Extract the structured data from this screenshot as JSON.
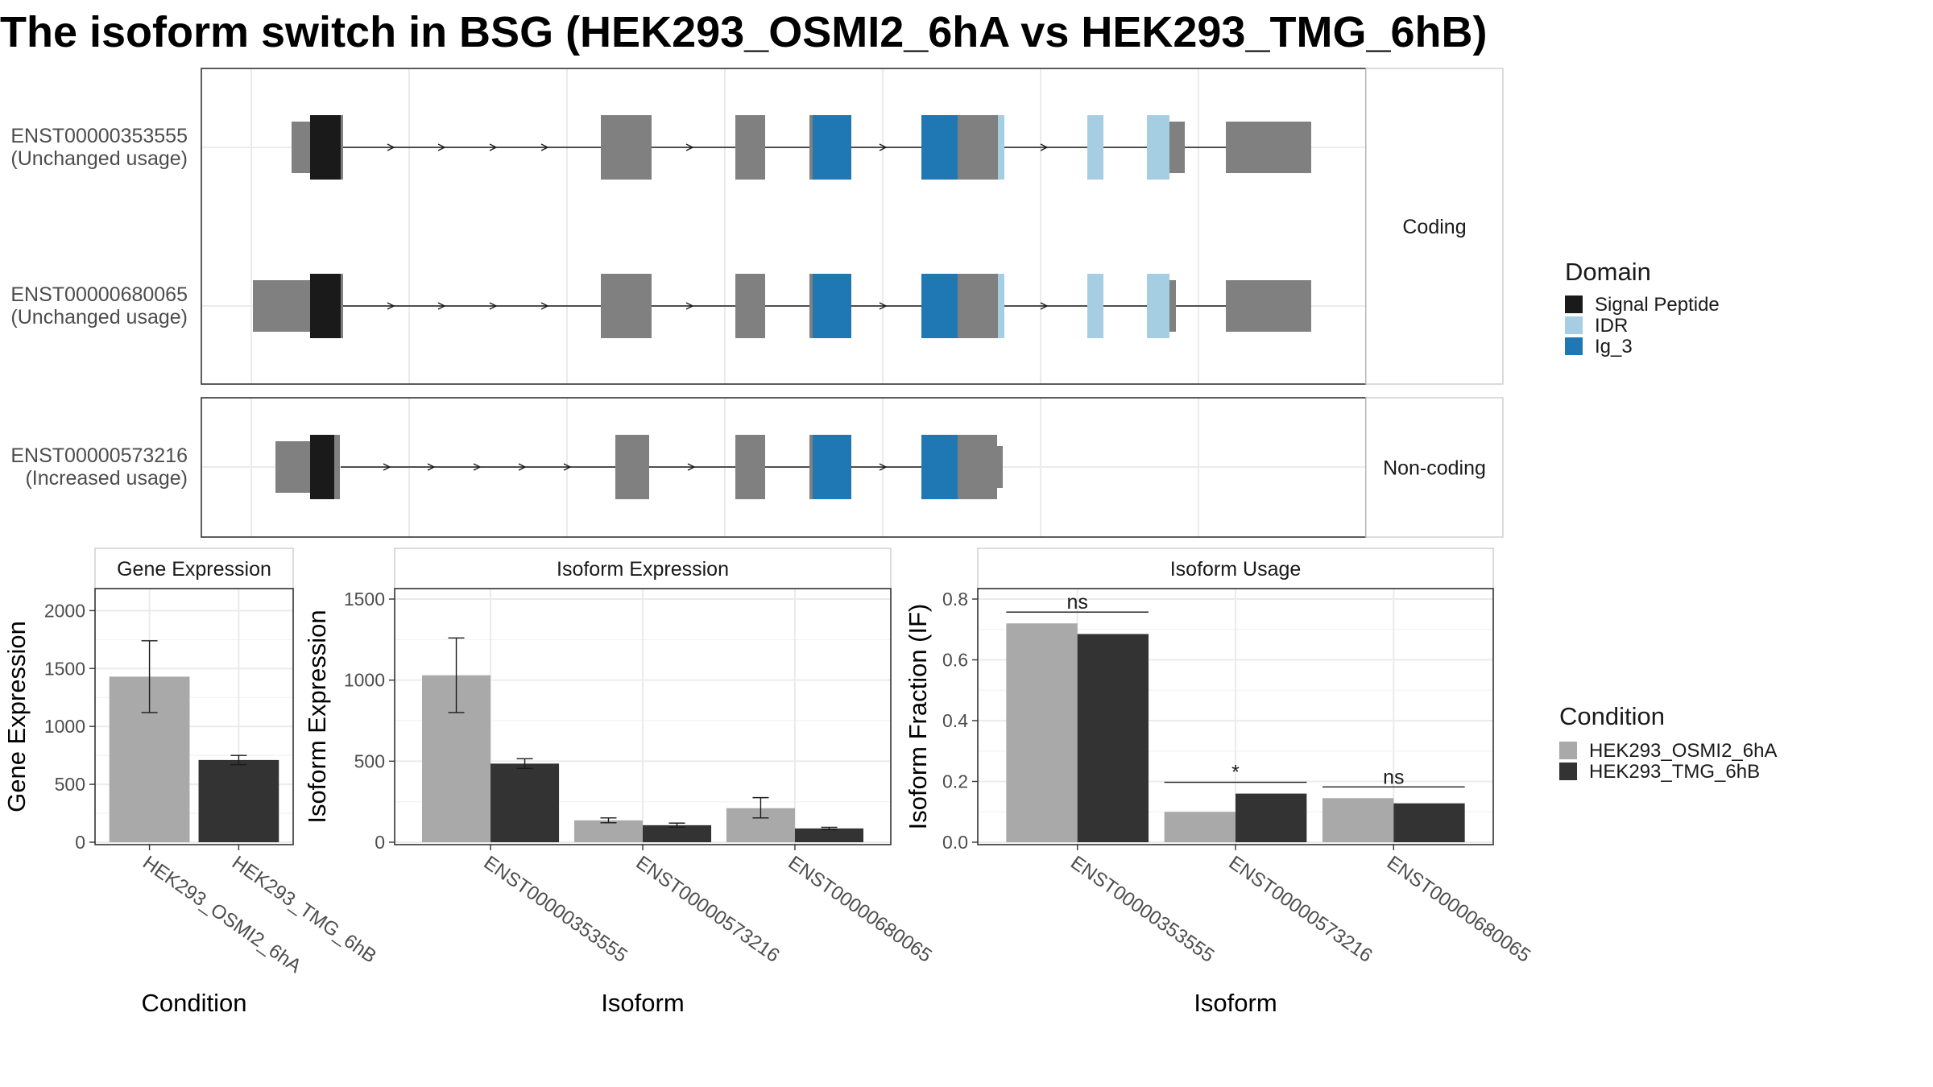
{
  "title": "The isoform switch in BSG (HEK293_OSMI2_6hA vs HEK293_TMG_6hB)",
  "colors": {
    "exon": "#808080",
    "signal_peptide": "#1a1a1a",
    "idr": "#a6cee3",
    "ig3": "#1f78b4",
    "cond_a": "#a9a9a9",
    "cond_b": "#333333",
    "panel_border": "#333333",
    "grid": "#ebebeb"
  },
  "structure": {
    "facets": [
      "Coding",
      "Non-coding"
    ],
    "transcripts": [
      {
        "id": "ENST00000353555",
        "usage": "(Unchanged usage)",
        "facet": "Coding"
      },
      {
        "id": "ENST00000680065",
        "usage": "(Unchanged usage)",
        "facet": "Coding"
      },
      {
        "id": "ENST00000573216",
        "usage": "(Increased usage)",
        "facet": "Non-coding"
      }
    ]
  },
  "legend_domain": {
    "title": "Domain",
    "items": [
      {
        "label": "Signal Peptide",
        "color": "#1a1a1a"
      },
      {
        "label": "IDR",
        "color": "#a6cee3"
      },
      {
        "label": "Ig_3",
        "color": "#1f78b4"
      }
    ]
  },
  "legend_condition": {
    "title": "Condition",
    "items": [
      {
        "label": "HEK293_OSMI2_6hA",
        "color": "#a9a9a9"
      },
      {
        "label": "HEK293_TMG_6hB",
        "color": "#333333"
      }
    ]
  },
  "chart_data": [
    {
      "type": "bar",
      "title": "Gene Expression",
      "xlabel": "Condition",
      "ylabel": "Gene Expression",
      "ylim": [
        0,
        2100
      ],
      "yticks": [
        0,
        500,
        1000,
        1500,
        2000
      ],
      "categories": [
        "HEK293_OSMI2_6hA",
        "HEK293_TMG_6hB"
      ],
      "values": [
        1430,
        710
      ],
      "errors": [
        [
          1120,
          1740
        ],
        [
          670,
          750
        ]
      ]
    },
    {
      "type": "bar",
      "title": "Isoform Expression",
      "xlabel": "Isoform",
      "ylabel": "Isoform Expression",
      "ylim": [
        0,
        1500
      ],
      "yticks": [
        0,
        500,
        1000,
        1500
      ],
      "categories": [
        "ENST00000353555",
        "ENST00000573216",
        "ENST00000680065"
      ],
      "series": [
        {
          "name": "HEK293_OSMI2_6hA",
          "values": [
            1030,
            135,
            210
          ],
          "errors": [
            [
              800,
              1260
            ],
            [
              120,
              150
            ],
            [
              150,
              275
            ]
          ]
        },
        {
          "name": "HEK293_TMG_6hB",
          "values": [
            485,
            105,
            85
          ],
          "errors": [
            [
              455,
              515
            ],
            [
              92,
              118
            ],
            [
              78,
              92
            ]
          ]
        }
      ]
    },
    {
      "type": "bar",
      "title": "Isoform Usage",
      "xlabel": "Isoform",
      "ylabel": "Isoform Fraction (IF)",
      "ylim": [
        0,
        0.8
      ],
      "yticks": [
        "0.0",
        "0.2",
        "0.4",
        "0.6",
        "0.8"
      ],
      "categories": [
        "ENST00000353555",
        "ENST00000573216",
        "ENST00000680065"
      ],
      "series": [
        {
          "name": "HEK293_OSMI2_6hA",
          "values": [
            0.72,
            0.1,
            0.145
          ]
        },
        {
          "name": "HEK293_TMG_6hB",
          "values": [
            0.685,
            0.16,
            0.128
          ]
        }
      ],
      "significance": [
        "ns",
        "*",
        "ns"
      ]
    }
  ]
}
